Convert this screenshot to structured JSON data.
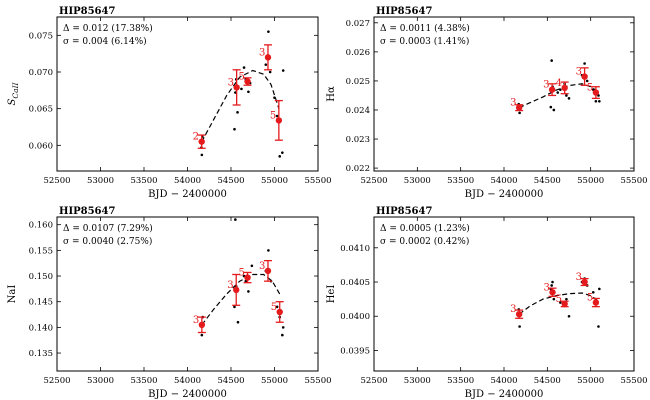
{
  "colors": {
    "axis": "#000000",
    "mean": "#e41a1c",
    "dots": "#000000",
    "fit": "#000000"
  },
  "chart_data": [
    {
      "type": "scatter",
      "title": "HIP85647",
      "xlabel": "BJD − 2400000",
      "ylabel": "S_CaII",
      "ylabel_main": "S",
      "ylabel_sub": "CaII",
      "xlim": [
        52500,
        55500
      ],
      "ylim": [
        0.0565,
        0.0775
      ],
      "xticks": [
        52500,
        53000,
        53500,
        54000,
        54500,
        55000,
        55500
      ],
      "xtick_labels": [
        "52500",
        "53000",
        "53500",
        "54000",
        "54500",
        "55000",
        "55500"
      ],
      "yticks": [
        0.06,
        0.065,
        0.07,
        0.075
      ],
      "ytick_labels": [
        "0.060",
        "0.065",
        "0.070",
        "0.075"
      ],
      "annotation_delta": "Δ = 0.012 (17.38%)",
      "annotation_sigma": "σ = 0.004 (6.14%)",
      "points": [
        [
          54155,
          0.0605
        ],
        [
          54160,
          0.0597
        ],
        [
          54165,
          0.0587
        ],
        [
          54170,
          0.0612
        ],
        [
          54540,
          0.0622
        ],
        [
          54550,
          0.0672
        ],
        [
          54560,
          0.069
        ],
        [
          54575,
          0.0645
        ],
        [
          54620,
          0.0677
        ],
        [
          54650,
          0.0706
        ],
        [
          54670,
          0.069
        ],
        [
          54700,
          0.0673
        ],
        [
          54720,
          0.0685
        ],
        [
          54900,
          0.071
        ],
        [
          54930,
          0.0755
        ],
        [
          54950,
          0.07
        ],
        [
          55000,
          0.0665
        ],
        [
          55030,
          0.064
        ],
        [
          55060,
          0.0585
        ],
        [
          55090,
          0.059
        ],
        [
          55100,
          0.0702
        ]
      ],
      "means": [
        {
          "x": 54163,
          "y": 0.0605,
          "err": 0.0009,
          "label": "2"
        },
        {
          "x": 54565,
          "y": 0.0679,
          "err": 0.0024,
          "label": "3"
        },
        {
          "x": 54690,
          "y": 0.0687,
          "err": 0.0005,
          "label": "5"
        },
        {
          "x": 54925,
          "y": 0.072,
          "err": 0.0017,
          "label": "3"
        },
        {
          "x": 55050,
          "y": 0.0634,
          "err": 0.0027,
          "label": "5"
        }
      ],
      "fit": [
        [
          54163,
          0.0605
        ],
        [
          54300,
          0.0635
        ],
        [
          54450,
          0.0668
        ],
        [
          54600,
          0.0693
        ],
        [
          54750,
          0.0702
        ],
        [
          54875,
          0.0697
        ],
        [
          54960,
          0.0683
        ],
        [
          55050,
          0.065
        ]
      ]
    },
    {
      "type": "scatter",
      "title": "HIP85647",
      "xlabel": "BJD − 2400000",
      "ylabel": "Hα",
      "xlim": [
        52500,
        55500
      ],
      "ylim": [
        0.0219,
        0.0272
      ],
      "xticks": [
        52500,
        53000,
        53500,
        54000,
        54500,
        55000,
        55500
      ],
      "xtick_labels": [
        "52500",
        "53000",
        "53500",
        "54000",
        "54500",
        "55000",
        "55500"
      ],
      "yticks": [
        0.022,
        0.023,
        0.024,
        0.025,
        0.026,
        0.027
      ],
      "ytick_labels": [
        "0.022",
        "0.023",
        "0.024",
        "0.025",
        "0.026",
        "0.027"
      ],
      "annotation_delta": "Δ = 0.0011 (4.38%)",
      "annotation_sigma": "σ = 0.0003 (1.41%)",
      "points": [
        [
          54160,
          0.0241
        ],
        [
          54170,
          0.0242
        ],
        [
          54180,
          0.0239
        ],
        [
          54540,
          0.0241
        ],
        [
          54550,
          0.0257
        ],
        [
          54560,
          0.0248
        ],
        [
          54575,
          0.024
        ],
        [
          54620,
          0.0246
        ],
        [
          54650,
          0.0247
        ],
        [
          54700,
          0.0249
        ],
        [
          54720,
          0.0245
        ],
        [
          54750,
          0.0244
        ],
        [
          54900,
          0.0252
        ],
        [
          54930,
          0.0256
        ],
        [
          54960,
          0.025
        ],
        [
          55030,
          0.0247
        ],
        [
          55060,
          0.0243
        ],
        [
          55090,
          0.0245
        ],
        [
          55100,
          0.0243
        ]
      ],
      "means": [
        {
          "x": 54175,
          "y": 0.02408,
          "err": 0.0001,
          "label": "3"
        },
        {
          "x": 54555,
          "y": 0.0247,
          "err": 0.0002,
          "label": "3"
        },
        {
          "x": 54700,
          "y": 0.02476,
          "err": 0.0002,
          "label": "4"
        },
        {
          "x": 54930,
          "y": 0.02515,
          "err": 0.0003,
          "label": "3"
        },
        {
          "x": 55060,
          "y": 0.0246,
          "err": 0.0002,
          "label": "5"
        }
      ],
      "fit": [
        [
          54175,
          0.02408
        ],
        [
          54300,
          0.02425
        ],
        [
          54450,
          0.02445
        ],
        [
          54600,
          0.02468
        ],
        [
          54750,
          0.02484
        ],
        [
          54900,
          0.0249
        ],
        [
          55000,
          0.0248
        ],
        [
          55060,
          0.02468
        ]
      ]
    },
    {
      "type": "scatter",
      "title": "HIP85647",
      "xlabel": "BJD − 2400000",
      "ylabel": "NaI",
      "xlim": [
        52500,
        55500
      ],
      "ylim": [
        0.1315,
        0.1615
      ],
      "xticks": [
        52500,
        53000,
        53500,
        54000,
        54500,
        55000,
        55500
      ],
      "xtick_labels": [
        "52500",
        "53000",
        "53500",
        "54000",
        "54500",
        "55000",
        "55500"
      ],
      "yticks": [
        0.135,
        0.14,
        0.145,
        0.15,
        0.155,
        0.16
      ],
      "ytick_labels": [
        "0.135",
        "0.140",
        "0.145",
        "0.150",
        "0.155",
        "0.160"
      ],
      "annotation_delta": "Δ = 0.0107 (7.29%)",
      "annotation_sigma": "σ = 0.0040 (2.75%)",
      "points": [
        [
          54155,
          0.1405
        ],
        [
          54165,
          0.1385
        ],
        [
          54175,
          0.142
        ],
        [
          54540,
          0.144
        ],
        [
          54550,
          0.161
        ],
        [
          54560,
          0.148
        ],
        [
          54580,
          0.141
        ],
        [
          54650,
          0.15
        ],
        [
          54670,
          0.149
        ],
        [
          54700,
          0.147
        ],
        [
          54740,
          0.152
        ],
        [
          54900,
          0.151
        ],
        [
          54930,
          0.155
        ],
        [
          54960,
          0.149
        ],
        [
          55030,
          0.144
        ],
        [
          55060,
          0.142
        ],
        [
          55090,
          0.1385
        ],
        [
          55100,
          0.14
        ]
      ],
      "means": [
        {
          "x": 54165,
          "y": 0.1405,
          "err": 0.0015,
          "label": "3"
        },
        {
          "x": 54560,
          "y": 0.1473,
          "err": 0.003,
          "label": "3"
        },
        {
          "x": 54690,
          "y": 0.1497,
          "err": 0.001,
          "label": "5"
        },
        {
          "x": 54925,
          "y": 0.151,
          "err": 0.002,
          "label": "3"
        },
        {
          "x": 55060,
          "y": 0.143,
          "err": 0.002,
          "label": "5"
        }
      ],
      "fit": [
        [
          54165,
          0.1405
        ],
        [
          54300,
          0.1435
        ],
        [
          54450,
          0.1465
        ],
        [
          54600,
          0.149
        ],
        [
          54750,
          0.1503
        ],
        [
          54875,
          0.1503
        ],
        [
          54975,
          0.149
        ],
        [
          55060,
          0.1465
        ]
      ]
    },
    {
      "type": "scatter",
      "title": "HIP85647",
      "xlabel": "BJD − 2400000",
      "ylabel": "HeI",
      "xlim": [
        52500,
        55500
      ],
      "ylim": [
        0.0392,
        0.04145
      ],
      "xticks": [
        52500,
        53000,
        53500,
        54000,
        54500,
        55000,
        55500
      ],
      "xtick_labels": [
        "52500",
        "53000",
        "53500",
        "54000",
        "54500",
        "55000",
        "55500"
      ],
      "yticks": [
        0.0395,
        0.04,
        0.0405,
        0.041
      ],
      "ytick_labels": [
        "0.0395",
        "0.0400",
        "0.0405",
        "0.0410"
      ],
      "annotation_delta": "Δ = 0.0005 (1.23%)",
      "annotation_sigma": "σ = 0.0002 (0.42%)",
      "points": [
        [
          54160,
          0.04005
        ],
        [
          54170,
          0.0401
        ],
        [
          54180,
          0.03985
        ],
        [
          54540,
          0.0404
        ],
        [
          54550,
          0.04045
        ],
        [
          54560,
          0.0405
        ],
        [
          54575,
          0.04025
        ],
        [
          54650,
          0.0402
        ],
        [
          54700,
          0.04015
        ],
        [
          54720,
          0.04025
        ],
        [
          54750,
          0.04
        ],
        [
          54900,
          0.0405
        ],
        [
          54930,
          0.04055
        ],
        [
          54960,
          0.04045
        ],
        [
          55030,
          0.04035
        ],
        [
          55060,
          0.04025
        ],
        [
          55090,
          0.03985
        ],
        [
          55100,
          0.0404
        ]
      ],
      "means": [
        {
          "x": 54175,
          "y": 0.04003,
          "err": 6e-05,
          "label": "3"
        },
        {
          "x": 54560,
          "y": 0.04035,
          "err": 6e-05,
          "label": "3"
        },
        {
          "x": 54700,
          "y": 0.04018,
          "err": 4e-05,
          "label": "5"
        },
        {
          "x": 54930,
          "y": 0.0405,
          "err": 5e-05,
          "label": "3"
        },
        {
          "x": 55060,
          "y": 0.0402,
          "err": 6e-05,
          "label": "5"
        }
      ],
      "fit": [
        [
          54175,
          0.04003
        ],
        [
          54300,
          0.04015
        ],
        [
          54450,
          0.04025
        ],
        [
          54600,
          0.0403
        ],
        [
          54750,
          0.04033
        ],
        [
          54900,
          0.04034
        ],
        [
          55000,
          0.0403
        ],
        [
          55060,
          0.04025
        ]
      ]
    }
  ]
}
